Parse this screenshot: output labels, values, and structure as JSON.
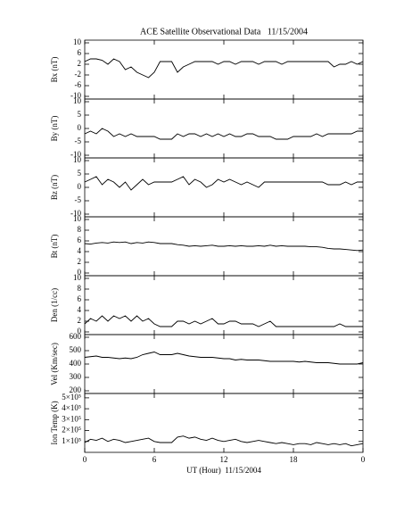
{
  "chart_data": [
    {
      "type": "line",
      "title": "ACE Satellite Observational Data   11/15/2004",
      "ylabel": "Bx (nT)",
      "color": "#000000",
      "x": [
        0,
        0.5,
        1,
        1.5,
        2,
        2.5,
        3,
        3.5,
        4,
        4.5,
        5,
        5.5,
        6,
        6.5,
        7,
        7.5,
        8,
        8.5,
        9,
        9.5,
        10,
        10.5,
        11,
        11.5,
        12,
        12.5,
        13,
        13.5,
        14,
        14.5,
        15,
        15.5,
        16,
        16.5,
        17,
        17.5,
        18,
        18.5,
        19,
        19.5,
        20,
        20.5,
        21,
        21.5,
        22,
        22.5,
        23,
        23.5,
        24
      ],
      "values": [
        3,
        4,
        4,
        3.5,
        2,
        4,
        3,
        0,
        1,
        -1,
        -2,
        -3,
        -1,
        3,
        3,
        3,
        -1,
        1,
        2,
        3,
        3,
        3,
        3,
        2,
        3,
        3,
        2,
        3,
        3,
        3,
        2,
        3,
        3,
        3,
        2,
        3,
        3,
        3,
        3,
        3,
        3,
        3,
        3,
        1,
        2,
        2,
        3,
        2,
        3
      ],
      "ylim": [
        -11,
        11
      ],
      "yticks": [
        10,
        6,
        2,
        -2,
        -6,
        -10
      ]
    },
    {
      "type": "line",
      "ylabel": "By (nT)",
      "color": "#000000",
      "x": [
        0,
        0.5,
        1,
        1.5,
        2,
        2.5,
        3,
        3.5,
        4,
        4.5,
        5,
        5.5,
        6,
        6.5,
        7,
        7.5,
        8,
        8.5,
        9,
        9.5,
        10,
        10.5,
        11,
        11.5,
        12,
        12.5,
        13,
        13.5,
        14,
        14.5,
        15,
        15.5,
        16,
        16.5,
        17,
        17.5,
        18,
        18.5,
        19,
        19.5,
        20,
        20.5,
        21,
        21.5,
        22,
        22.5,
        23,
        23.5,
        24
      ],
      "values": [
        -2,
        -1,
        -2,
        0,
        -1,
        -3,
        -2,
        -3,
        -2,
        -3,
        -3,
        -3,
        -3,
        -4,
        -4,
        -4,
        -2,
        -3,
        -2,
        -2,
        -3,
        -2,
        -3,
        -2,
        -3,
        -2,
        -3,
        -3,
        -2,
        -2,
        -3,
        -3,
        -3,
        -4,
        -4,
        -4,
        -3,
        -3,
        -3,
        -3,
        -2,
        -3,
        -2,
        -2,
        -2,
        -2,
        -2,
        -1,
        -1
      ],
      "ylim": [
        -11,
        11
      ],
      "yticks": [
        10,
        5,
        0,
        -5,
        -10
      ]
    },
    {
      "type": "line",
      "ylabel": "Bz (nT)",
      "color": "#000000",
      "x": [
        0,
        0.5,
        1,
        1.5,
        2,
        2.5,
        3,
        3.5,
        4,
        4.5,
        5,
        5.5,
        6,
        6.5,
        7,
        7.5,
        8,
        8.5,
        9,
        9.5,
        10,
        10.5,
        11,
        11.5,
        12,
        12.5,
        13,
        13.5,
        14,
        14.5,
        15,
        15.5,
        16,
        16.5,
        17,
        17.5,
        18,
        18.5,
        19,
        19.5,
        20,
        20.5,
        21,
        21.5,
        22,
        22.5,
        23,
        23.5,
        24
      ],
      "values": [
        2,
        3,
        4,
        1,
        3,
        2,
        0,
        2,
        -1,
        1,
        3,
        1,
        2,
        2,
        2,
        2,
        3,
        4,
        1,
        3,
        2,
        0,
        1,
        3,
        2,
        3,
        2,
        1,
        2,
        1,
        0,
        2,
        2,
        2,
        2,
        2,
        2,
        2,
        2,
        2,
        2,
        2,
        1,
        1,
        1,
        2,
        1,
        2,
        2
      ],
      "ylim": [
        -11,
        11
      ],
      "yticks": [
        10,
        5,
        0,
        -5,
        -10
      ]
    },
    {
      "type": "line",
      "ylabel": "Bt (nT)",
      "color": "#000000",
      "x": [
        0,
        0.5,
        1,
        1.5,
        2,
        2.5,
        3,
        3.5,
        4,
        4.5,
        5,
        5.5,
        6,
        6.5,
        7,
        7.5,
        8,
        8.5,
        9,
        9.5,
        10,
        10.5,
        11,
        11.5,
        12,
        12.5,
        13,
        13.5,
        14,
        14.5,
        15,
        15.5,
        16,
        16.5,
        17,
        17.5,
        18,
        18.5,
        19,
        19.5,
        20,
        20.5,
        21,
        21.5,
        22,
        22.5,
        23,
        23.5,
        24
      ],
      "values": [
        5.5,
        5.4,
        5.6,
        5.7,
        5.6,
        5.8,
        5.7,
        5.8,
        5.5,
        5.7,
        5.6,
        5.8,
        5.7,
        5.5,
        5.5,
        5.5,
        5.3,
        5.2,
        5.0,
        5.1,
        5.0,
        5.1,
        5.2,
        5.0,
        5.0,
        5.1,
        5.0,
        5.1,
        5.0,
        5.0,
        5.1,
        5.0,
        5.2,
        5.0,
        5.1,
        5.0,
        5.0,
        5.0,
        5.0,
        4.9,
        4.9,
        4.8,
        4.6,
        4.5,
        4.5,
        4.4,
        4.3,
        4.2,
        4.3
      ],
      "ylim": [
        -0.5,
        10.5
      ],
      "yticks": [
        10,
        8,
        6,
        4,
        2,
        0
      ]
    },
    {
      "type": "line",
      "ylabel": "Den (1/cc)",
      "color": "#000000",
      "x": [
        0,
        0.5,
        1,
        1.5,
        2,
        2.5,
        3,
        3.5,
        4,
        4.5,
        5,
        5.5,
        6,
        6.5,
        7,
        7.5,
        8,
        8.5,
        9,
        9.5,
        10,
        10.5,
        11,
        11.5,
        12,
        12.5,
        13,
        13.5,
        14,
        14.5,
        15,
        15.5,
        16,
        16.5,
        17,
        17.5,
        18,
        18.5,
        19,
        19.5,
        20,
        20.5,
        21,
        21.5,
        22,
        22.5,
        23,
        23.5,
        24
      ],
      "values": [
        1.5,
        2.5,
        2,
        3,
        2,
        3,
        2.5,
        3,
        2,
        3,
        2,
        2.5,
        1.5,
        1,
        1,
        1,
        2,
        2,
        1.5,
        2,
        1.5,
        2,
        2.5,
        1.5,
        1.5,
        2,
        2,
        1.5,
        1.5,
        1.5,
        1,
        1.5,
        2,
        1,
        1,
        1,
        1,
        1,
        1,
        1,
        1,
        1,
        1,
        1,
        1.5,
        1,
        1,
        1,
        1
      ],
      "ylim": [
        -0.5,
        10.5
      ],
      "yticks": [
        10,
        8,
        6,
        4,
        2,
        0
      ]
    },
    {
      "type": "line",
      "ylabel": "Vel (Km/sec)",
      "color": "#000000",
      "x": [
        0,
        0.5,
        1,
        1.5,
        2,
        2.5,
        3,
        3.5,
        4,
        4.5,
        5,
        5.5,
        6,
        6.5,
        7,
        7.5,
        8,
        8.5,
        9,
        9.5,
        10,
        10.5,
        11,
        11.5,
        12,
        12.5,
        13,
        13.5,
        14,
        14.5,
        15,
        15.5,
        16,
        16.5,
        17,
        17.5,
        18,
        18.5,
        19,
        19.5,
        20,
        20.5,
        21,
        21.5,
        22,
        22.5,
        23,
        23.5,
        24
      ],
      "values": [
        450,
        455,
        460,
        450,
        450,
        445,
        440,
        445,
        440,
        450,
        470,
        480,
        490,
        470,
        470,
        470,
        480,
        470,
        460,
        455,
        450,
        450,
        450,
        445,
        440,
        440,
        430,
        435,
        430,
        430,
        430,
        425,
        420,
        420,
        420,
        420,
        420,
        415,
        420,
        415,
        410,
        410,
        410,
        405,
        400,
        400,
        400,
        400,
        410
      ],
      "ylim": [
        180,
        620
      ],
      "yticks": [
        600,
        500,
        400,
        300,
        200
      ]
    },
    {
      "type": "line",
      "ylabel": "Ion Temp (K)",
      "xlabel": "UT (Hour)  11/15/2004",
      "color": "#000000",
      "x": [
        0,
        0.5,
        1,
        1.5,
        2,
        2.5,
        3,
        3.5,
        4,
        4.5,
        5,
        5.5,
        6,
        6.5,
        7,
        7.5,
        8,
        8.5,
        9,
        9.5,
        10,
        10.5,
        11,
        11.5,
        12,
        12.5,
        13,
        13.5,
        14,
        14.5,
        15,
        15.5,
        16,
        16.5,
        17,
        17.5,
        18,
        18.5,
        19,
        19.5,
        20,
        20.5,
        21,
        21.5,
        22,
        22.5,
        23,
        23.5,
        24
      ],
      "values": [
        90000,
        120000,
        110000,
        130000,
        100000,
        120000,
        110000,
        90000,
        100000,
        110000,
        120000,
        130000,
        100000,
        90000,
        90000,
        90000,
        140000,
        150000,
        130000,
        140000,
        120000,
        110000,
        130000,
        110000,
        100000,
        110000,
        120000,
        100000,
        90000,
        100000,
        110000,
        100000,
        90000,
        80000,
        90000,
        80000,
        70000,
        80000,
        80000,
        70000,
        90000,
        80000,
        70000,
        80000,
        70000,
        80000,
        60000,
        70000,
        80000
      ],
      "ylim": [
        0,
        540000
      ],
      "yticks": [
        {
          "value": 500000,
          "label": "5×10⁵"
        },
        {
          "value": 400000,
          "label": "4×10⁵"
        },
        {
          "value": 300000,
          "label": "3×10⁵"
        },
        {
          "value": 200000,
          "label": "2×10⁵"
        },
        {
          "value": 100000,
          "label": "1×10⁵"
        }
      ],
      "xlim": [
        0,
        24
      ],
      "xticks": [
        0,
        6,
        12,
        18,
        {
          "value": 24,
          "label": "0"
        }
      ]
    }
  ]
}
